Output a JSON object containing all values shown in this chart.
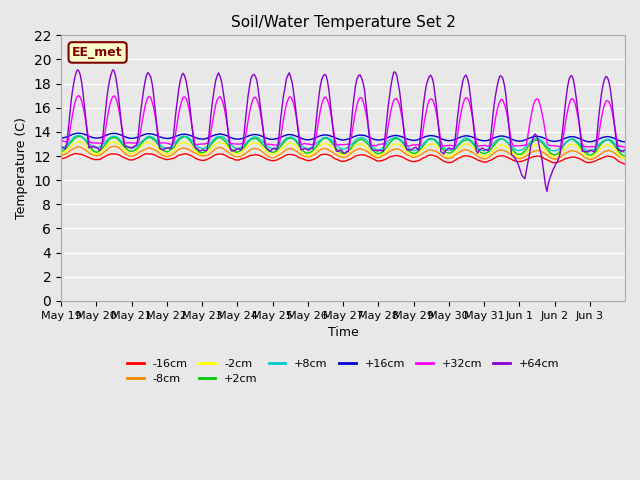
{
  "title": "Soil/Water Temperature Set 2",
  "xlabel": "Time",
  "ylabel": "Temperature (C)",
  "ylim": [
    0,
    22
  ],
  "yticks": [
    0,
    2,
    4,
    6,
    8,
    10,
    12,
    14,
    16,
    18,
    20,
    22
  ],
  "background_color": "#e8e8e8",
  "plot_bg_color": "#e8e8e8",
  "grid_color": "#ffffff",
  "annotation_text": "EE_met",
  "annotation_bg": "#ffffcc",
  "annotation_border": "#800000",
  "series": {
    "-16cm": {
      "color": "#ff0000",
      "base": 12.0,
      "amplitude": 0.3,
      "trend": -0.02
    },
    "-8cm": {
      "color": "#ff8800",
      "base": 12.4,
      "amplitude": 0.4,
      "trend": -0.02
    },
    "-2cm": {
      "color": "#ffff00",
      "base": 12.7,
      "amplitude": 0.5,
      "trend": -0.02
    },
    "+2cm": {
      "color": "#00cc00",
      "base": 13.0,
      "amplitude": 0.6,
      "trend": -0.02
    },
    "+8cm": {
      "color": "#00cccc",
      "base": 13.2,
      "amplitude": 0.5,
      "trend": -0.02
    },
    "+16cm": {
      "color": "#0000cc",
      "base": 13.7,
      "amplitude": 0.3,
      "trend": -0.02
    },
    "+32cm": {
      "color": "#ff00ff",
      "base": 14.0,
      "amplitude": 3.5,
      "trend": -0.02
    },
    "+64cm": {
      "color": "#8800cc",
      "base": 14.5,
      "amplitude": 5.0,
      "trend": -0.02
    }
  },
  "n_days": 16,
  "x_tick_labels": [
    "May 19",
    "May 20",
    "May 21",
    "May 22",
    "May 23",
    "May 24",
    "May 25",
    "May 26",
    "May 27",
    "May 28",
    "May 29",
    "May 30",
    "May 31",
    "Jun 1",
    "Jun 2",
    "Jun 3"
  ],
  "legend_entries": [
    {
      "label": "-16cm",
      "color": "#ff0000"
    },
    {
      "label": "-8cm",
      "color": "#ff8800"
    },
    {
      "label": "-2cm",
      "color": "#ffff00"
    },
    {
      "label": "+2cm",
      "color": "#00cc00"
    },
    {
      "label": "+8cm",
      "color": "#00cccc"
    },
    {
      "label": "+16cm",
      "color": "#0000cc"
    },
    {
      "label": "+32cm",
      "color": "#ff00ff"
    },
    {
      "label": "+64cm",
      "color": "#8800cc"
    }
  ]
}
